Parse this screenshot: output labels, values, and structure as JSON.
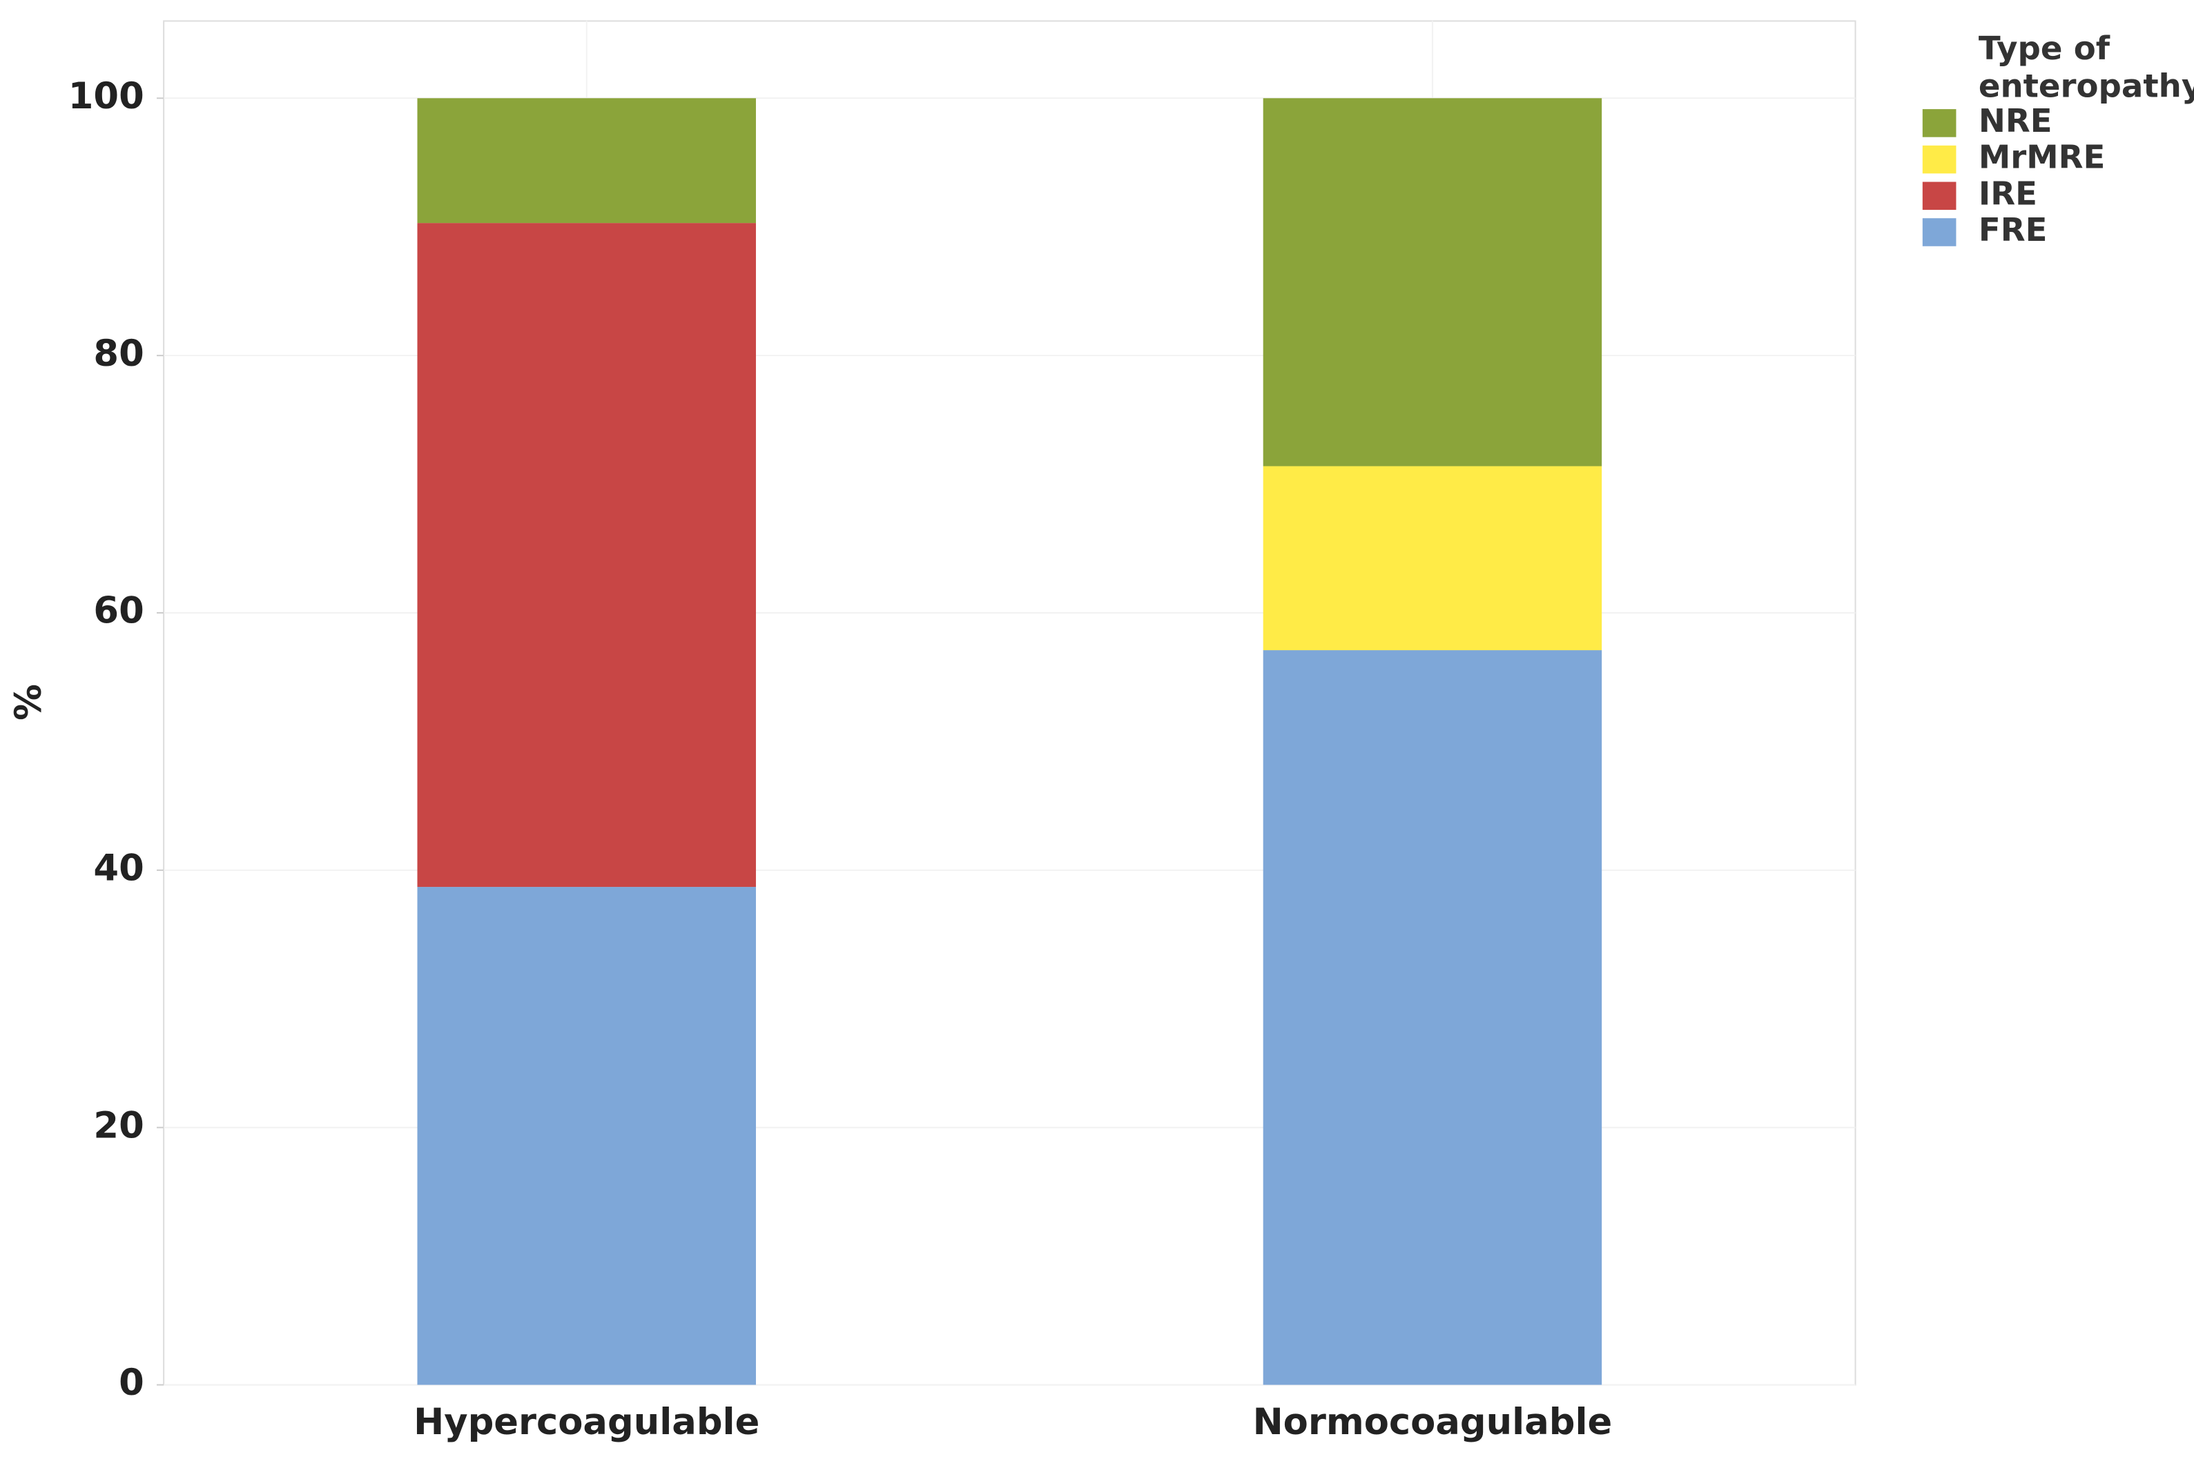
{
  "chart_data": {
    "type": "stacked_bar",
    "y_label": "%",
    "categories": [
      "Hypercoagulable",
      "Normocoagulable"
    ],
    "series": [
      {
        "name": "FRE",
        "color": "#7ea7d8",
        "values": [
          38.7,
          57.1
        ]
      },
      {
        "name": "IRE",
        "color": "#c84645",
        "values": [
          51.6,
          0
        ]
      },
      {
        "name": "MrMRE",
        "color": "#ffeb47",
        "values": [
          0,
          14.3
        ]
      },
      {
        "name": "NRE",
        "color": "#8ba43a",
        "values": [
          9.7,
          28.6
        ]
      }
    ],
    "legend_title": "Type of enteropathy",
    "legend_position": "right",
    "ylim": [
      0,
      106
    ],
    "yticks": [
      0,
      20,
      40,
      60,
      80,
      100
    ],
    "grid": true
  }
}
